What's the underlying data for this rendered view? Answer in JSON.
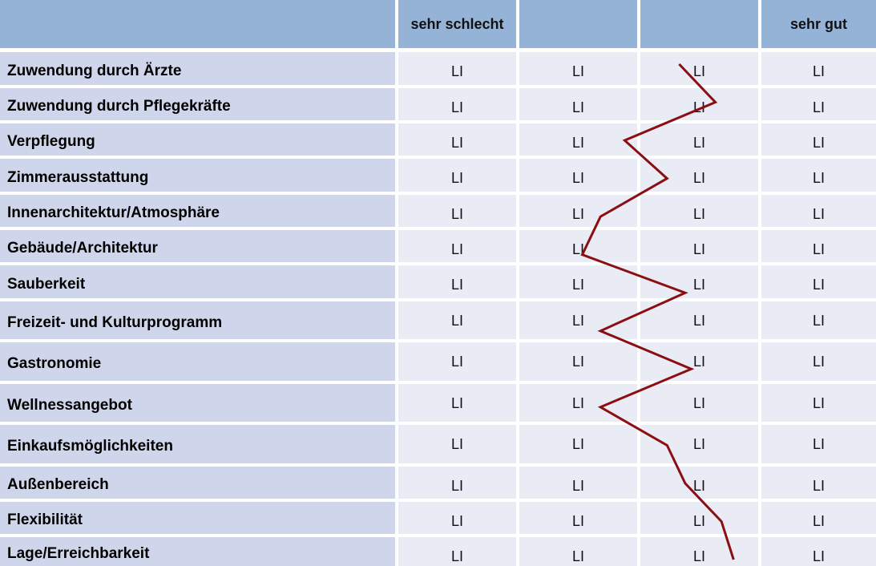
{
  "chart_data": {
    "type": "line",
    "orientation": "vertical-profile",
    "columns": [
      "sehr schlecht",
      "",
      "",
      "sehr gut"
    ],
    "categories": [
      "Zuwendung durch Ärzte",
      "Zuwendung durch Pflegekräfte",
      "Verpflegung",
      "Zimmerausstattung",
      "Innenarchitektur/Atmosphäre",
      "Gebäude/Architektur",
      "Sauberkeit",
      "Freizeit- und Kulturprogramm",
      "Gastronomie",
      "Wellnessangebot",
      "Einkaufsmöglichkeiten",
      "Außenbereich",
      "Flexibilität",
      "Lage/Erreichbarkeit"
    ],
    "cell_marker": "LI",
    "scale_range": [
      1,
      4
    ],
    "values": [
      2.85,
      3.15,
      2.4,
      2.75,
      2.2,
      2.05,
      2.9,
      2.2,
      2.95,
      2.2,
      2.75,
      2.9,
      3.2,
      3.3
    ],
    "line_color": "#8b0f12"
  }
}
